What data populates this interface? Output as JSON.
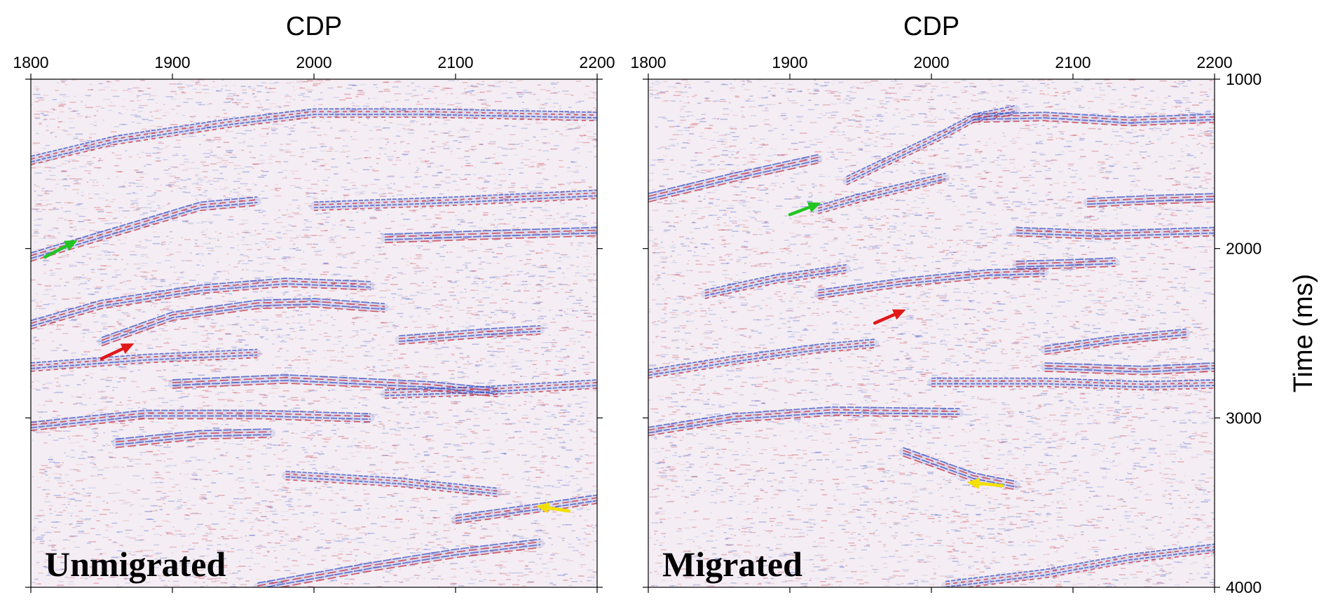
{
  "chart_data": [
    {
      "type": "heatmap",
      "panel_label": "Unmigrated",
      "xlabel": "CDP",
      "ylabel": "",
      "xlim": [
        1800,
        2200
      ],
      "ylim": [
        1000,
        4000
      ],
      "y_inverted": true,
      "xticks": [
        "1800",
        "1900",
        "2000",
        "2100",
        "2200"
      ],
      "yticks": [],
      "colormap": "blue-white-red seismic amplitude",
      "colors": {
        "negative": "#2a3fbf",
        "neutral": "#f4eef4",
        "positive": "#c21a2a"
      },
      "reflectors": [
        {
          "points": [
            [
              1800,
              1480
            ],
            [
              1860,
              1360
            ],
            [
              1940,
              1260
            ],
            [
              2000,
              1200
            ],
            [
              2080,
              1200
            ],
            [
              2200,
              1220
            ]
          ]
        },
        {
          "points": [
            [
              1800,
              2050
            ],
            [
              1860,
              1900
            ],
            [
              1920,
              1750
            ],
            [
              1960,
              1720
            ]
          ]
        },
        {
          "points": [
            [
              2050,
              1940
            ],
            [
              2120,
              1920
            ],
            [
              2200,
              1900
            ]
          ]
        },
        {
          "points": [
            [
              2000,
              1750
            ],
            [
              2100,
              1720
            ],
            [
              2200,
              1680
            ]
          ]
        },
        {
          "points": [
            [
              1800,
              2450
            ],
            [
              1850,
              2330
            ],
            [
              1920,
              2240
            ],
            [
              1980,
              2200
            ],
            [
              2040,
              2220
            ]
          ]
        },
        {
          "points": [
            [
              1850,
              2550
            ],
            [
              1900,
              2400
            ],
            [
              1960,
              2330
            ],
            [
              2000,
              2320
            ],
            [
              2050,
              2350
            ]
          ]
        },
        {
          "points": [
            [
              1800,
              2700
            ],
            [
              1880,
              2650
            ],
            [
              1960,
              2620
            ]
          ]
        },
        {
          "points": [
            [
              2060,
              2540
            ],
            [
              2120,
              2500
            ],
            [
              2160,
              2480
            ]
          ]
        },
        {
          "points": [
            [
              1900,
              2800
            ],
            [
              1980,
              2770
            ],
            [
              2080,
              2810
            ],
            [
              2130,
              2850
            ]
          ]
        },
        {
          "points": [
            [
              2050,
              2860
            ],
            [
              2120,
              2840
            ],
            [
              2200,
              2800
            ]
          ]
        },
        {
          "points": [
            [
              1800,
              3050
            ],
            [
              1880,
              2980
            ],
            [
              1960,
              2980
            ],
            [
              2040,
              3000
            ]
          ]
        },
        {
          "points": [
            [
              1860,
              3150
            ],
            [
              1920,
              3100
            ],
            [
              1970,
              3090
            ]
          ]
        },
        {
          "points": [
            [
              1980,
              3340
            ],
            [
              2060,
              3380
            ],
            [
              2130,
              3440
            ]
          ]
        },
        {
          "points": [
            [
              2100,
              3600
            ],
            [
              2160,
              3530
            ],
            [
              2200,
              3480
            ]
          ]
        },
        {
          "points": [
            [
              1960,
              4000
            ],
            [
              2040,
              3880
            ],
            [
              2100,
              3800
            ],
            [
              2160,
              3740
            ]
          ]
        }
      ],
      "arrows": [
        {
          "color": "green",
          "hex": "#22c422",
          "from": [
            1810,
            2050
          ],
          "to": [
            1833,
            1950
          ]
        },
        {
          "color": "red",
          "hex": "#e01818",
          "from": [
            1850,
            2650
          ],
          "to": [
            1873,
            2560
          ]
        },
        {
          "color": "yellow",
          "hex": "#f2e000",
          "from": [
            2180,
            3550
          ],
          "to": [
            2157,
            3520
          ]
        }
      ]
    },
    {
      "type": "heatmap",
      "panel_label": "Migrated",
      "xlabel": "CDP",
      "ylabel": "Time (ms)",
      "xlim": [
        1800,
        2200
      ],
      "ylim": [
        1000,
        4000
      ],
      "y_inverted": true,
      "xticks": [
        "1800",
        "1900",
        "2000",
        "2100",
        "2200"
      ],
      "yticks": [
        "1000",
        "2000",
        "3000",
        "4000"
      ],
      "colormap": "blue-white-red seismic amplitude",
      "colors": {
        "negative": "#2a3fbf",
        "neutral": "#f4eef4",
        "positive": "#c21a2a"
      },
      "reflectors": [
        {
          "points": [
            [
              1940,
              1600
            ],
            [
              1980,
              1440
            ],
            [
              2010,
              1320
            ],
            [
              2030,
              1230
            ],
            [
              2060,
              1180
            ]
          ]
        },
        {
          "points": [
            [
              2030,
              1230
            ],
            [
              2080,
              1220
            ],
            [
              2140,
              1250
            ],
            [
              2200,
              1230
            ]
          ]
        },
        {
          "points": [
            [
              1800,
              1700
            ],
            [
              1860,
              1580
            ],
            [
              1920,
              1470
            ]
          ]
        },
        {
          "points": [
            [
              1920,
              1770
            ],
            [
              1950,
              1700
            ],
            [
              1980,
              1640
            ],
            [
              2010,
              1580
            ]
          ]
        },
        {
          "points": [
            [
              2060,
              1900
            ],
            [
              2120,
              1920
            ],
            [
              2200,
              1900
            ]
          ]
        },
        {
          "points": [
            [
              2110,
              1730
            ],
            [
              2160,
              1710
            ],
            [
              2200,
              1700
            ]
          ]
        },
        {
          "points": [
            [
              1840,
              2270
            ],
            [
              1890,
              2180
            ],
            [
              1940,
              2120
            ]
          ]
        },
        {
          "points": [
            [
              1920,
              2270
            ],
            [
              1980,
              2200
            ],
            [
              2040,
              2150
            ],
            [
              2080,
              2140
            ]
          ]
        },
        {
          "points": [
            [
              2060,
              2100
            ],
            [
              2100,
              2090
            ],
            [
              2130,
              2080
            ]
          ]
        },
        {
          "points": [
            [
              1800,
              2740
            ],
            [
              1860,
              2660
            ],
            [
              1920,
              2590
            ],
            [
              1960,
              2560
            ]
          ]
        },
        {
          "points": [
            [
              2080,
              2600
            ],
            [
              2130,
              2540
            ],
            [
              2180,
              2500
            ]
          ]
        },
        {
          "points": [
            [
              2080,
              2700
            ],
            [
              2150,
              2720
            ],
            [
              2200,
              2700
            ]
          ]
        },
        {
          "points": [
            [
              2000,
              2790
            ],
            [
              2080,
              2790
            ],
            [
              2150,
              2810
            ],
            [
              2200,
              2800
            ]
          ]
        },
        {
          "points": [
            [
              1800,
              3080
            ],
            [
              1860,
              3000
            ],
            [
              1930,
              2960
            ],
            [
              2020,
              2970
            ]
          ]
        },
        {
          "points": [
            [
              1980,
              3200
            ],
            [
              2030,
              3350
            ],
            [
              2060,
              3400
            ]
          ]
        },
        {
          "points": [
            [
              2010,
              3990
            ],
            [
              2080,
              3920
            ],
            [
              2140,
              3830
            ],
            [
              2200,
              3770
            ]
          ]
        }
      ],
      "arrows": [
        {
          "color": "green",
          "hex": "#22c422",
          "from": [
            1900,
            1800
          ],
          "to": [
            1922,
            1730
          ]
        },
        {
          "color": "red",
          "hex": "#e01818",
          "from": [
            1960,
            2440
          ],
          "to": [
            1982,
            2360
          ]
        },
        {
          "color": "yellow",
          "hex": "#f2e000",
          "from": [
            2050,
            3400
          ],
          "to": [
            2025,
            3380
          ]
        }
      ]
    }
  ]
}
